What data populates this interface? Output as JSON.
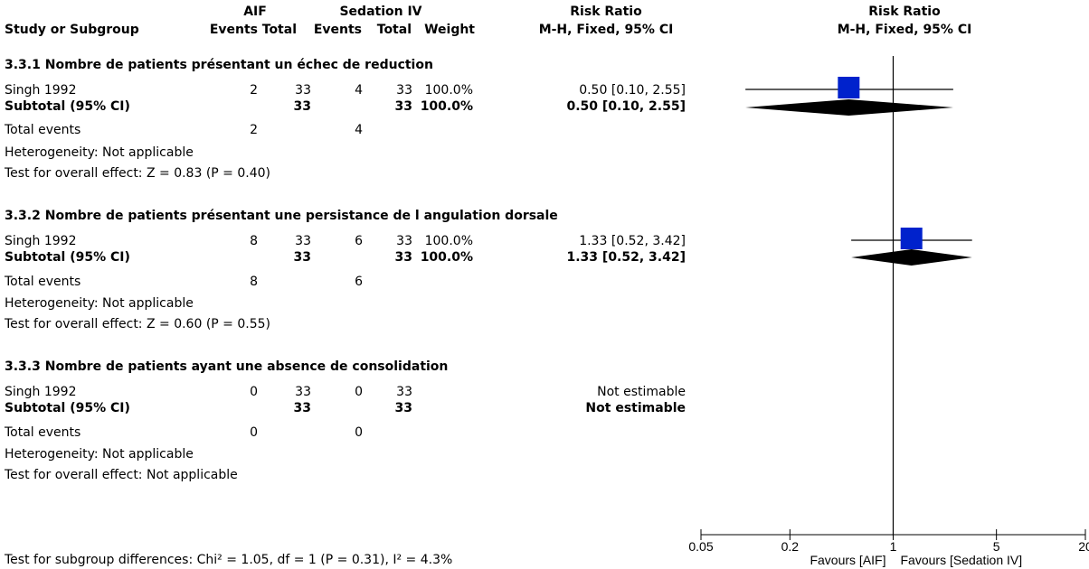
{
  "headers": {
    "group1": "AIF",
    "group2": "Sedation IV",
    "rr_top": "Risk Ratio",
    "study": "Study or Subgroup",
    "events1": "Events",
    "total1": "Total",
    "events2": "Events",
    "total2": "Total",
    "weight": "Weight",
    "rr_method": "M-H, Fixed, 95% CI",
    "plot_top": "Risk Ratio",
    "plot_method": "M-H, Fixed, 95% CI"
  },
  "subgroups": [
    {
      "title": "3.3.1 Nombre de patients présentant un échec de reduction",
      "study": {
        "name": "Singh 1992",
        "e1": "2",
        "t1": "33",
        "e2": "4",
        "t2": "33",
        "weight": "100.0%",
        "ci": "0.50 [0.10, 2.55]"
      },
      "subtotal": {
        "label": "Subtotal (95% CI)",
        "t1": "33",
        "t2": "33",
        "weight": "100.0%",
        "ci": "0.50 [0.10, 2.55]"
      },
      "total_events": {
        "label": "Total events",
        "e1": "2",
        "e2": "4"
      },
      "heterogeneity": "Heterogeneity: Not applicable",
      "overall": "Test for overall effect: Z = 0.83 (P = 0.40)"
    },
    {
      "title": "3.3.2 Nombre de patients présentant une persistance de l angulation dorsale",
      "study": {
        "name": "Singh 1992",
        "e1": "8",
        "t1": "33",
        "e2": "6",
        "t2": "33",
        "weight": "100.0%",
        "ci": "1.33 [0.52, 3.42]"
      },
      "subtotal": {
        "label": "Subtotal (95% CI)",
        "t1": "33",
        "t2": "33",
        "weight": "100.0%",
        "ci": "1.33 [0.52, 3.42]"
      },
      "total_events": {
        "label": "Total events",
        "e1": "8",
        "e2": "6"
      },
      "heterogeneity": "Heterogeneity: Not applicable",
      "overall": "Test for overall effect: Z = 0.60 (P = 0.55)"
    },
    {
      "title": "3.3.3 Nombre de patients ayant une absence de consolidation",
      "study": {
        "name": "Singh 1992",
        "e1": "0",
        "t1": "33",
        "e2": "0",
        "t2": "33",
        "weight": "",
        "ci": "Not estimable"
      },
      "subtotal": {
        "label": "Subtotal (95% CI)",
        "t1": "33",
        "t2": "33",
        "weight": "",
        "ci": "Not estimable"
      },
      "total_events": {
        "label": "Total events",
        "e1": "0",
        "e2": "0"
      },
      "heterogeneity": "Heterogeneity: Not applicable",
      "overall": "Test for overall effect: Not applicable"
    }
  ],
  "footer": {
    "subgroup_test": "Test for subgroup differences: Chi² = 1.05, df = 1 (P = 0.31), I² = 4.3%",
    "favours_left": "Favours [AIF]",
    "favours_right": "Favours [Sedation IV]"
  },
  "chart_data": {
    "type": "forest",
    "scale": "log",
    "xlim": [
      0.05,
      20
    ],
    "ticks": [
      0.05,
      0.2,
      1,
      5,
      20
    ],
    "tick_labels": [
      "0.05",
      "0.2",
      "1",
      "5",
      "20"
    ],
    "null_value": 1,
    "studies": [
      {
        "subgroup": "3.3.1",
        "rr": 0.5,
        "lo": 0.1,
        "hi": 2.55,
        "weight": 100.0
      },
      {
        "subgroup": "3.3.2",
        "rr": 1.33,
        "lo": 0.52,
        "hi": 3.42,
        "weight": 100.0
      }
    ],
    "diamonds": [
      {
        "subgroup": "3.3.1",
        "rr": 0.5,
        "lo": 0.1,
        "hi": 2.55
      },
      {
        "subgroup": "3.3.2",
        "rr": 1.33,
        "lo": 0.52,
        "hi": 3.42
      }
    ],
    "colors": {
      "square": "#0022cc",
      "diamond": "#000000",
      "line": "#000000"
    }
  }
}
